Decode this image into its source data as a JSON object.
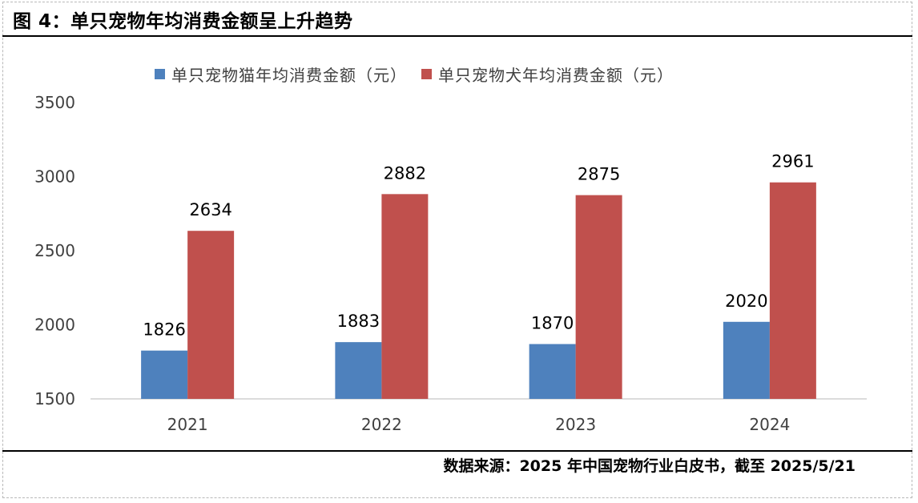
{
  "figure": {
    "title": "图 4：单只宠物年均消费金额呈上升趋势",
    "source": "数据来源：2025 年中国宠物行业白皮书，截至 2025/5/21"
  },
  "colors": {
    "cat": "#4e81bd",
    "dog": "#c0504d",
    "axis": "#d0d0d0",
    "text": "#404040"
  },
  "chart_data": {
    "type": "bar",
    "title": "",
    "xlabel": "",
    "ylabel": "",
    "categories": [
      "2021",
      "2022",
      "2023",
      "2024"
    ],
    "series": [
      {
        "name": "单只宠物猫年均消费金额（元）",
        "values": [
          1826,
          1883,
          1870,
          2020
        ]
      },
      {
        "name": "单只宠物犬年均消费金额（元）",
        "values": [
          2634,
          2882,
          2875,
          2961
        ]
      }
    ],
    "ylim": [
      1500,
      3500
    ],
    "yticks": [
      "1500",
      "2000",
      "2500",
      "3000",
      "3500"
    ],
    "grid": false,
    "legend": "top-center",
    "data_labels": true
  }
}
